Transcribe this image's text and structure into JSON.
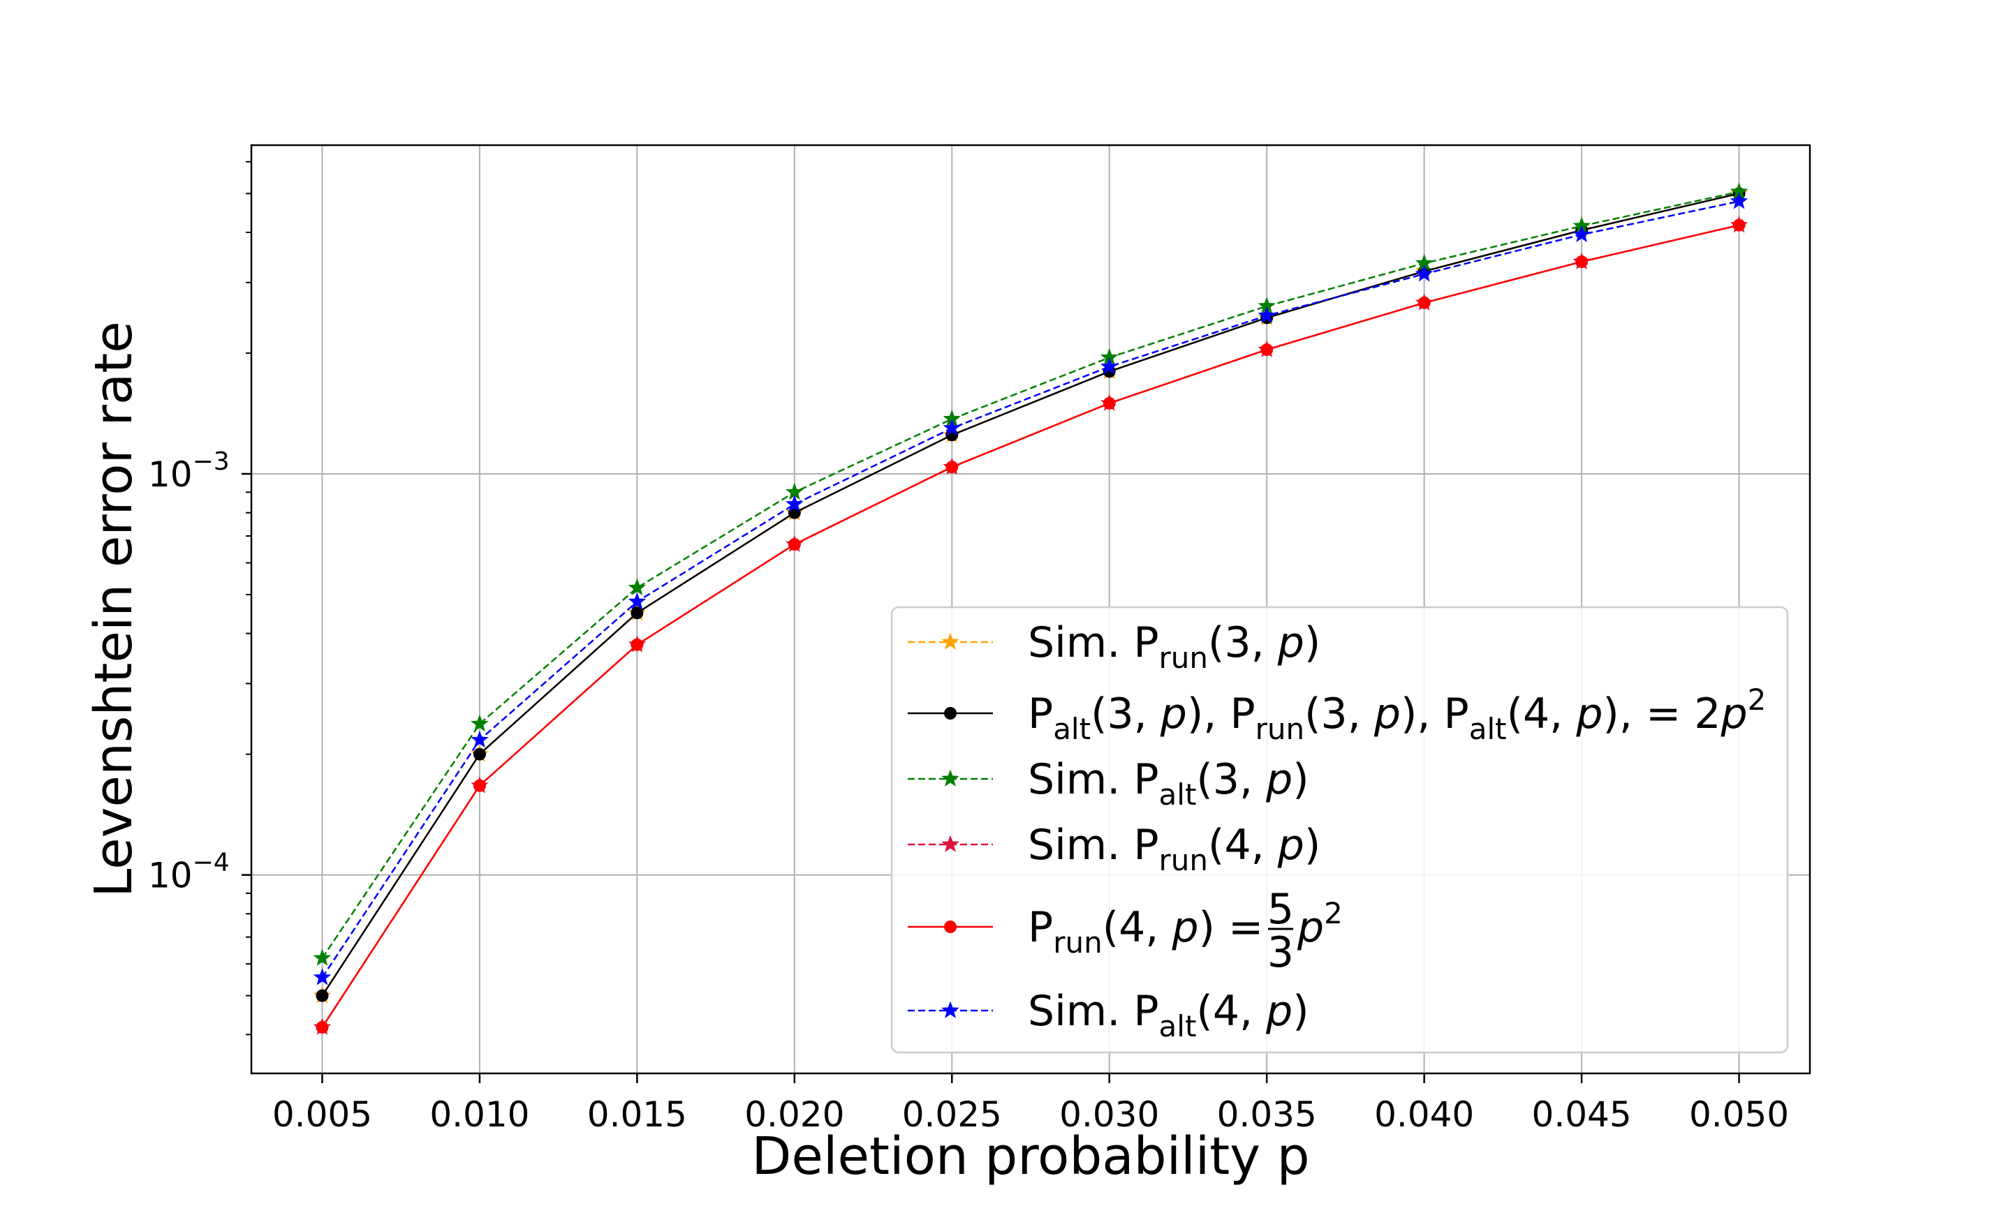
{
  "chart_data": {
    "type": "line",
    "yscale": "log",
    "xlabel": "Deletion probability p",
    "ylabel": "Levenshtein error rate",
    "xlim": [
      0.00275,
      0.05225
    ],
    "ylim": [
      3.2e-05,
      0.0066
    ],
    "grid": true,
    "legend_position": "lower-right",
    "x": [
      0.005,
      0.01,
      0.015,
      0.02,
      0.025,
      0.03,
      0.035,
      0.04,
      0.045,
      0.05
    ],
    "xticks": [
      "0.005",
      "0.010",
      "0.015",
      "0.020",
      "0.025",
      "0.030",
      "0.035",
      "0.040",
      "0.045",
      "0.050"
    ],
    "yticks": [
      {
        "value": 0.0001,
        "base": "10",
        "exponent": "−4"
      },
      {
        "value": 0.001,
        "base": "10",
        "exponent": "−3"
      }
    ],
    "series": [
      {
        "key": "sim_prun3",
        "color": "#ffa500",
        "linestyle": "dashed",
        "marker": "star",
        "legend_parts": [
          "Sim. P",
          "run",
          "(3, ",
          "p",
          ")"
        ],
        "values": [
          5e-05,
          0.0002,
          0.00045,
          0.0008,
          0.00125,
          0.0018,
          0.00245,
          0.0032,
          0.00405,
          0.005
        ]
      },
      {
        "key": "theory_k3",
        "color": "#000000",
        "linestyle": "solid",
        "marker": "circle",
        "legend_parts": [
          "P",
          "alt",
          "(3, ",
          "p",
          "), P",
          "run",
          "(3, ",
          "p",
          "), P",
          "alt",
          "(4, ",
          "p",
          "),  = 2",
          "p",
          "2"
        ],
        "values": [
          5e-05,
          0.0002,
          0.00045,
          0.0008,
          0.00125,
          0.0018,
          0.00245,
          0.0032,
          0.00405,
          0.005
        ]
      },
      {
        "key": "sim_palt3",
        "color": "#008000",
        "linestyle": "dashed",
        "marker": "star",
        "legend_parts": [
          "Sim. P",
          "alt",
          "(3, ",
          "p",
          ")"
        ],
        "values": [
          6.2e-05,
          0.000238,
          0.00052,
          0.0009,
          0.00137,
          0.00195,
          0.00262,
          0.00335,
          0.00415,
          0.00505
        ]
      },
      {
        "key": "sim_prun4",
        "color": "#dc143c",
        "linestyle": "dashed",
        "marker": "star",
        "legend_parts": [
          "Sim. P",
          "run",
          "(4, ",
          "p",
          ")"
        ],
        "values": [
          4.17e-05,
          0.000167,
          0.000375,
          0.000667,
          0.00104,
          0.0015,
          0.00204,
          0.00267,
          0.00338,
          0.00417
        ]
      },
      {
        "key": "theory_prun4",
        "color": "#ff0000",
        "linestyle": "solid",
        "marker": "circle",
        "legend_parts": [
          "P",
          "run",
          "(4, ",
          "p",
          ")  =",
          "5",
          "3",
          "p",
          "2"
        ],
        "values": [
          4.17e-05,
          0.000167,
          0.000375,
          0.000667,
          0.00104,
          0.0015,
          0.00204,
          0.00267,
          0.00338,
          0.00417
        ]
      },
      {
        "key": "sim_palt4",
        "color": "#0000ff",
        "linestyle": "dashed",
        "marker": "star",
        "legend_parts": [
          "Sim. P",
          "alt",
          "(4, ",
          "p",
          ")"
        ],
        "values": [
          5.55e-05,
          0.000217,
          0.00048,
          0.00084,
          0.0013,
          0.00185,
          0.00248,
          0.00315,
          0.00395,
          0.00478
        ]
      }
    ]
  }
}
